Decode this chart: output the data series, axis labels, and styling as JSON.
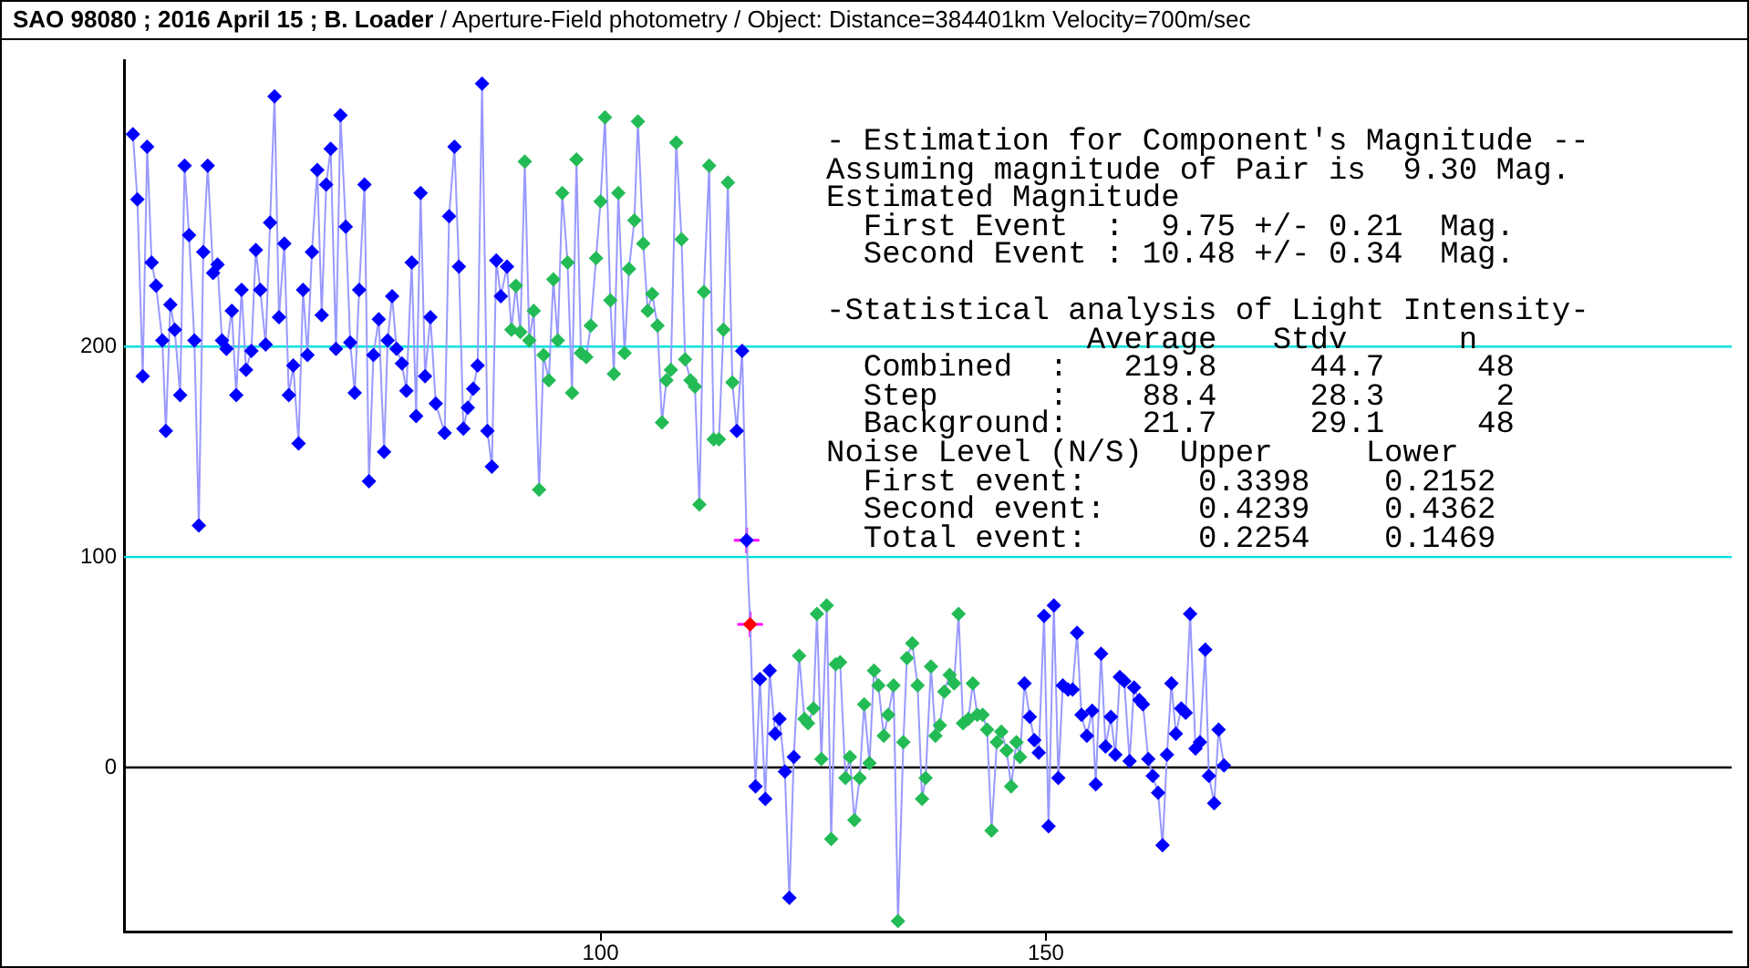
{
  "chart_data": {
    "type": "line",
    "title": "SAO 98080 ; 2016 April 15 ; B. Loader",
    "subtitle": "/ Aperture-Field photometry /  Object: Distance=384401km Velocity=700m/sec",
    "xlim": [
      46.5,
      227
    ],
    "xticks": [
      100,
      150
    ],
    "ylim": [
      -78,
      336
    ],
    "yticks": [
      0,
      100,
      200
    ],
    "grid": false,
    "legend": false,
    "ref_lines": [
      {
        "axis": "y",
        "value": 200,
        "color": "#00e0e0"
      },
      {
        "axis": "y",
        "value": 100,
        "color": "#00e0e0"
      },
      {
        "axis": "y",
        "value": 0,
        "color": "#000000"
      }
    ],
    "annotations": [
      "- Estimation for Component's Magnitude --",
      "Assuming magnitude of Pair is  9.30 Mag.",
      "Estimated Magnitude",
      "  First Event  :  9.75 +/- 0.21  Mag.",
      "  Second Event : 10.48 +/- 0.34  Mag.",
      "-Statistical analysis of Light Intensity-",
      "              Average   Stdv      n",
      "  Combined  :   219.8     44.7     48",
      "  Step      :    88.4     28.3      2",
      "  Background:    21.7     29.1     48",
      "Noise Level (N/S)  Upper     Lower",
      "  First event:      0.3398    0.2152",
      "  Second event:     0.4239    0.4362",
      "  Total event:      0.2254    0.1469"
    ],
    "series": [
      {
        "type": "line",
        "color": "#9999ff",
        "marker": "diamond",
        "x": [
          47.5,
          48.0,
          48.6,
          49.1,
          49.6,
          50.1,
          50.8,
          51.2,
          51.7,
          52.2,
          52.8,
          53.3,
          53.8,
          54.4,
          54.9,
          55.4,
          55.9,
          56.5,
          57.0,
          57.5,
          58.0,
          58.6,
          59.1,
          59.7,
          60.2,
          60.8,
          61.3,
          61.8,
          62.4,
          62.9,
          63.4,
          63.9,
          64.5,
          65.0,
          65.5,
          66.1,
          66.6,
          67.1,
          67.6,
          68.2,
          68.7,
          69.2,
          69.7,
          70.3,
          70.8,
          71.4,
          71.9,
          72.4,
          72.9,
          73.5,
          74.0,
          74.5,
          75.1,
          75.7,
          76.1,
          76.6,
          77.1,
          77.7,
          78.2,
          78.8,
          79.3,
          79.8,
          80.3,
          80.9,
          81.5,
          82.5,
          83.0,
          83.6,
          84.1,
          84.6,
          85.1,
          85.7,
          86.2,
          86.7,
          87.3,
          87.8,
          88.3,
          88.8,
          89.5,
          90.0,
          90.5,
          91.0,
          91.5,
          92.0,
          92.5,
          93.1,
          93.6,
          94.2,
          94.7,
          95.2,
          95.7,
          96.3,
          96.8,
          97.3,
          97.8,
          98.4,
          98.9,
          99.5,
          100.0,
          100.5,
          101.1,
          101.5,
          102.0,
          102.7,
          103.2,
          103.8,
          104.2,
          104.8,
          105.3,
          105.8,
          106.4,
          106.9,
          107.4,
          107.9,
          108.5,
          109.1,
          109.5,
          110.1,
          110.6,
          111.1,
          111.6,
          112.2,
          112.7,
          113.3,
          113.8,
          114.3,
          114.8,
          115.3,
          115.9,
          116.4,
          116.8,
          117.4,
          117.9,
          118.5,
          119.0,
          119.6,
          120.1,
          120.7,
          121.2,
          121.7,
          122.3,
          122.9,
          123.3,
          123.9,
          124.3,
          124.8,
          125.4,
          125.9,
          126.4,
          126.9,
          127.5,
          128.0,
          128.5,
          129.1,
          129.6,
          130.2,
          130.7,
          131.2,
          131.8,
          132.3,
          132.9,
          133.4,
          134.0,
          134.4,
          135.0,
          135.6,
          136.1,
          136.5,
          137.1,
          137.6,
          138.1,
          138.6,
          139.2,
          139.7,
          140.2,
          140.7,
          141.3,
          141.8,
          142.3,
          142.9,
          143.4,
          143.9,
          144.5,
          145.0,
          145.6,
          146.1,
          146.7,
          147.1,
          147.6,
          148.2,
          148.7,
          149.2,
          149.8,
          150.3,
          150.9,
          151.4,
          151.9,
          152.5,
          153.0,
          153.5,
          154.0,
          154.6,
          155.2,
          155.6,
          156.2,
          156.7,
          157.3,
          157.8,
          158.3,
          158.8,
          159.4,
          159.9,
          160.5,
          160.9,
          161.5,
          162.0,
          162.6,
          163.1,
          163.6,
          164.1,
          164.6,
          165.2,
          165.7,
          166.2,
          166.8,
          167.3,
          167.9,
          168.3,
          168.9,
          169.4,
          170.0
        ],
        "values": [
          301,
          270,
          186,
          295,
          240,
          229,
          203,
          160,
          220,
          208,
          177,
          286,
          253,
          203,
          115,
          245,
          286,
          235,
          239,
          203,
          199,
          217,
          177,
          227,
          189,
          198,
          246,
          227,
          201,
          259,
          319,
          214,
          249,
          177,
          191,
          154,
          227,
          196,
          245,
          284,
          215,
          277,
          294,
          199,
          310,
          257,
          202,
          178,
          227,
          277,
          136,
          196,
          213,
          150,
          203,
          224,
          199,
          192,
          179,
          240,
          167,
          273,
          186,
          214,
          173,
          159,
          262,
          295,
          238,
          161,
          171,
          180,
          191,
          325,
          160,
          143,
          241,
          224,
          238,
          208,
          229,
          207,
          288,
          203,
          217,
          132,
          196,
          184,
          232,
          203,
          273,
          240,
          178,
          289,
          197,
          195,
          210,
          242,
          269,
          309,
          222,
          187,
          273,
          197,
          237,
          260,
          307,
          249,
          217,
          225,
          210,
          164,
          184,
          189,
          297,
          251,
          194,
          184,
          181,
          125,
          226,
          286,
          156,
          156,
          208,
          278,
          183,
          160,
          198,
          108,
          68,
          -9,
          42,
          -15,
          46,
          16,
          23,
          -2,
          -62,
          5,
          53,
          23,
          21,
          28,
          73,
          4,
          77,
          -34,
          49,
          50,
          -5,
          5,
          -25,
          -5,
          30,
          2,
          46,
          39,
          15,
          25,
          39,
          -73,
          12,
          52,
          59,
          39,
          -15,
          -5,
          48,
          15,
          20,
          36,
          44,
          40,
          73,
          21,
          23,
          40,
          25,
          25,
          18,
          -30,
          12,
          17,
          8,
          -9,
          12,
          5,
          40,
          24,
          13,
          7,
          72,
          -28,
          77,
          -5,
          39,
          37,
          37,
          64,
          25,
          15,
          27,
          -8,
          54,
          10,
          24,
          6,
          43,
          41,
          3,
          38,
          32,
          30,
          4,
          -4,
          -12,
          -37,
          6,
          40,
          16,
          28,
          26,
          73,
          9,
          12,
          56,
          -4,
          -17,
          18,
          1
        ],
        "colors": [
          "#0000ff",
          "#0000ff",
          "#0000ff",
          "#0000ff",
          "#0000ff",
          "#0000ff",
          "#0000ff",
          "#0000ff",
          "#0000ff",
          "#0000ff",
          "#0000ff",
          "#0000ff",
          "#0000ff",
          "#0000ff",
          "#0000ff",
          "#0000ff",
          "#0000ff",
          "#0000ff",
          "#0000ff",
          "#0000ff",
          "#0000ff",
          "#0000ff",
          "#0000ff",
          "#0000ff",
          "#0000ff",
          "#0000ff",
          "#0000ff",
          "#0000ff",
          "#0000ff",
          "#0000ff",
          "#0000ff",
          "#0000ff",
          "#0000ff",
          "#0000ff",
          "#0000ff",
          "#0000ff",
          "#0000ff",
          "#0000ff",
          "#0000ff",
          "#0000ff",
          "#0000ff",
          "#0000ff",
          "#0000ff",
          "#0000ff",
          "#0000ff",
          "#0000ff",
          "#0000ff",
          "#0000ff",
          "#0000ff",
          "#0000ff",
          "#0000ff",
          "#0000ff",
          "#0000ff",
          "#0000ff",
          "#0000ff",
          "#0000ff",
          "#0000ff",
          "#0000ff",
          "#0000ff",
          "#0000ff",
          "#0000ff",
          "#0000ff",
          "#0000ff",
          "#0000ff",
          "#0000ff",
          "#0000ff",
          "#0000ff",
          "#0000ff",
          "#0000ff",
          "#0000ff",
          "#0000ff",
          "#0000ff",
          "#0000ff",
          "#0000ff",
          "#0000ff",
          "#0000ff",
          "#0000ff",
          "#0000ff",
          "#0000ff",
          "#22bb55",
          "#22bb55",
          "#22bb55",
          "#22bb55",
          "#22bb55",
          "#22bb55",
          "#22bb55",
          "#22bb55",
          "#22bb55",
          "#22bb55",
          "#22bb55",
          "#22bb55",
          "#22bb55",
          "#22bb55",
          "#22bb55",
          "#22bb55",
          "#22bb55",
          "#22bb55",
          "#22bb55",
          "#22bb55",
          "#22bb55",
          "#22bb55",
          "#22bb55",
          "#22bb55",
          "#22bb55",
          "#22bb55",
          "#22bb55",
          "#22bb55",
          "#22bb55",
          "#22bb55",
          "#22bb55",
          "#22bb55",
          "#22bb55",
          "#22bb55",
          "#22bb55",
          "#22bb55",
          "#22bb55",
          "#22bb55",
          "#22bb55",
          "#22bb55",
          "#22bb55",
          "#22bb55",
          "#22bb55",
          "#22bb55",
          "#22bb55",
          "#22bb55",
          "#22bb55",
          "#22bb55",
          "#0000ff",
          "#0000ff",
          "#0000ff",
          "#ff0000",
          "#0000ff",
          "#0000ff",
          "#0000ff",
          "#0000ff",
          "#0000ff",
          "#0000ff",
          "#0000ff",
          "#0000ff",
          "#0000ff",
          "#22bb55",
          "#22bb55",
          "#22bb55",
          "#22bb55",
          "#22bb55",
          "#22bb55",
          "#22bb55",
          "#22bb55",
          "#22bb55",
          "#22bb55",
          "#22bb55",
          "#22bb55",
          "#22bb55",
          "#22bb55",
          "#22bb55",
          "#22bb55",
          "#22bb55",
          "#22bb55",
          "#22bb55",
          "#22bb55",
          "#22bb55",
          "#22bb55",
          "#22bb55",
          "#22bb55",
          "#22bb55",
          "#22bb55",
          "#22bb55",
          "#22bb55",
          "#22bb55",
          "#22bb55",
          "#22bb55",
          "#22bb55",
          "#22bb55",
          "#22bb55",
          "#22bb55",
          "#22bb55",
          "#22bb55",
          "#22bb55",
          "#22bb55",
          "#22bb55",
          "#22bb55",
          "#22bb55",
          "#22bb55",
          "#22bb55",
          "#22bb55",
          "#22bb55",
          "#22bb55",
          "#22bb55",
          "#0000ff",
          "#0000ff",
          "#0000ff",
          "#0000ff",
          "#0000ff",
          "#0000ff",
          "#0000ff",
          "#0000ff",
          "#0000ff",
          "#0000ff",
          "#0000ff",
          "#0000ff",
          "#0000ff",
          "#0000ff",
          "#0000ff",
          "#0000ff",
          "#0000ff",
          "#0000ff",
          "#0000ff",
          "#0000ff",
          "#0000ff",
          "#0000ff",
          "#0000ff",
          "#0000ff",
          "#0000ff",
          "#0000ff",
          "#0000ff",
          "#0000ff",
          "#0000ff",
          "#0000ff",
          "#0000ff",
          "#0000ff",
          "#0000ff",
          "#0000ff",
          "#0000ff",
          "#0000ff",
          "#0000ff",
          "#0000ff",
          "#0000ff",
          "#0000ff",
          "#0000ff",
          "#0000ff",
          "#0000ff"
        ]
      },
      {
        "type": "scatter",
        "color": "#ff00ff",
        "marker": "cross",
        "x": [
          116.4,
          116.8
        ],
        "values": [
          108,
          68
        ]
      }
    ]
  }
}
